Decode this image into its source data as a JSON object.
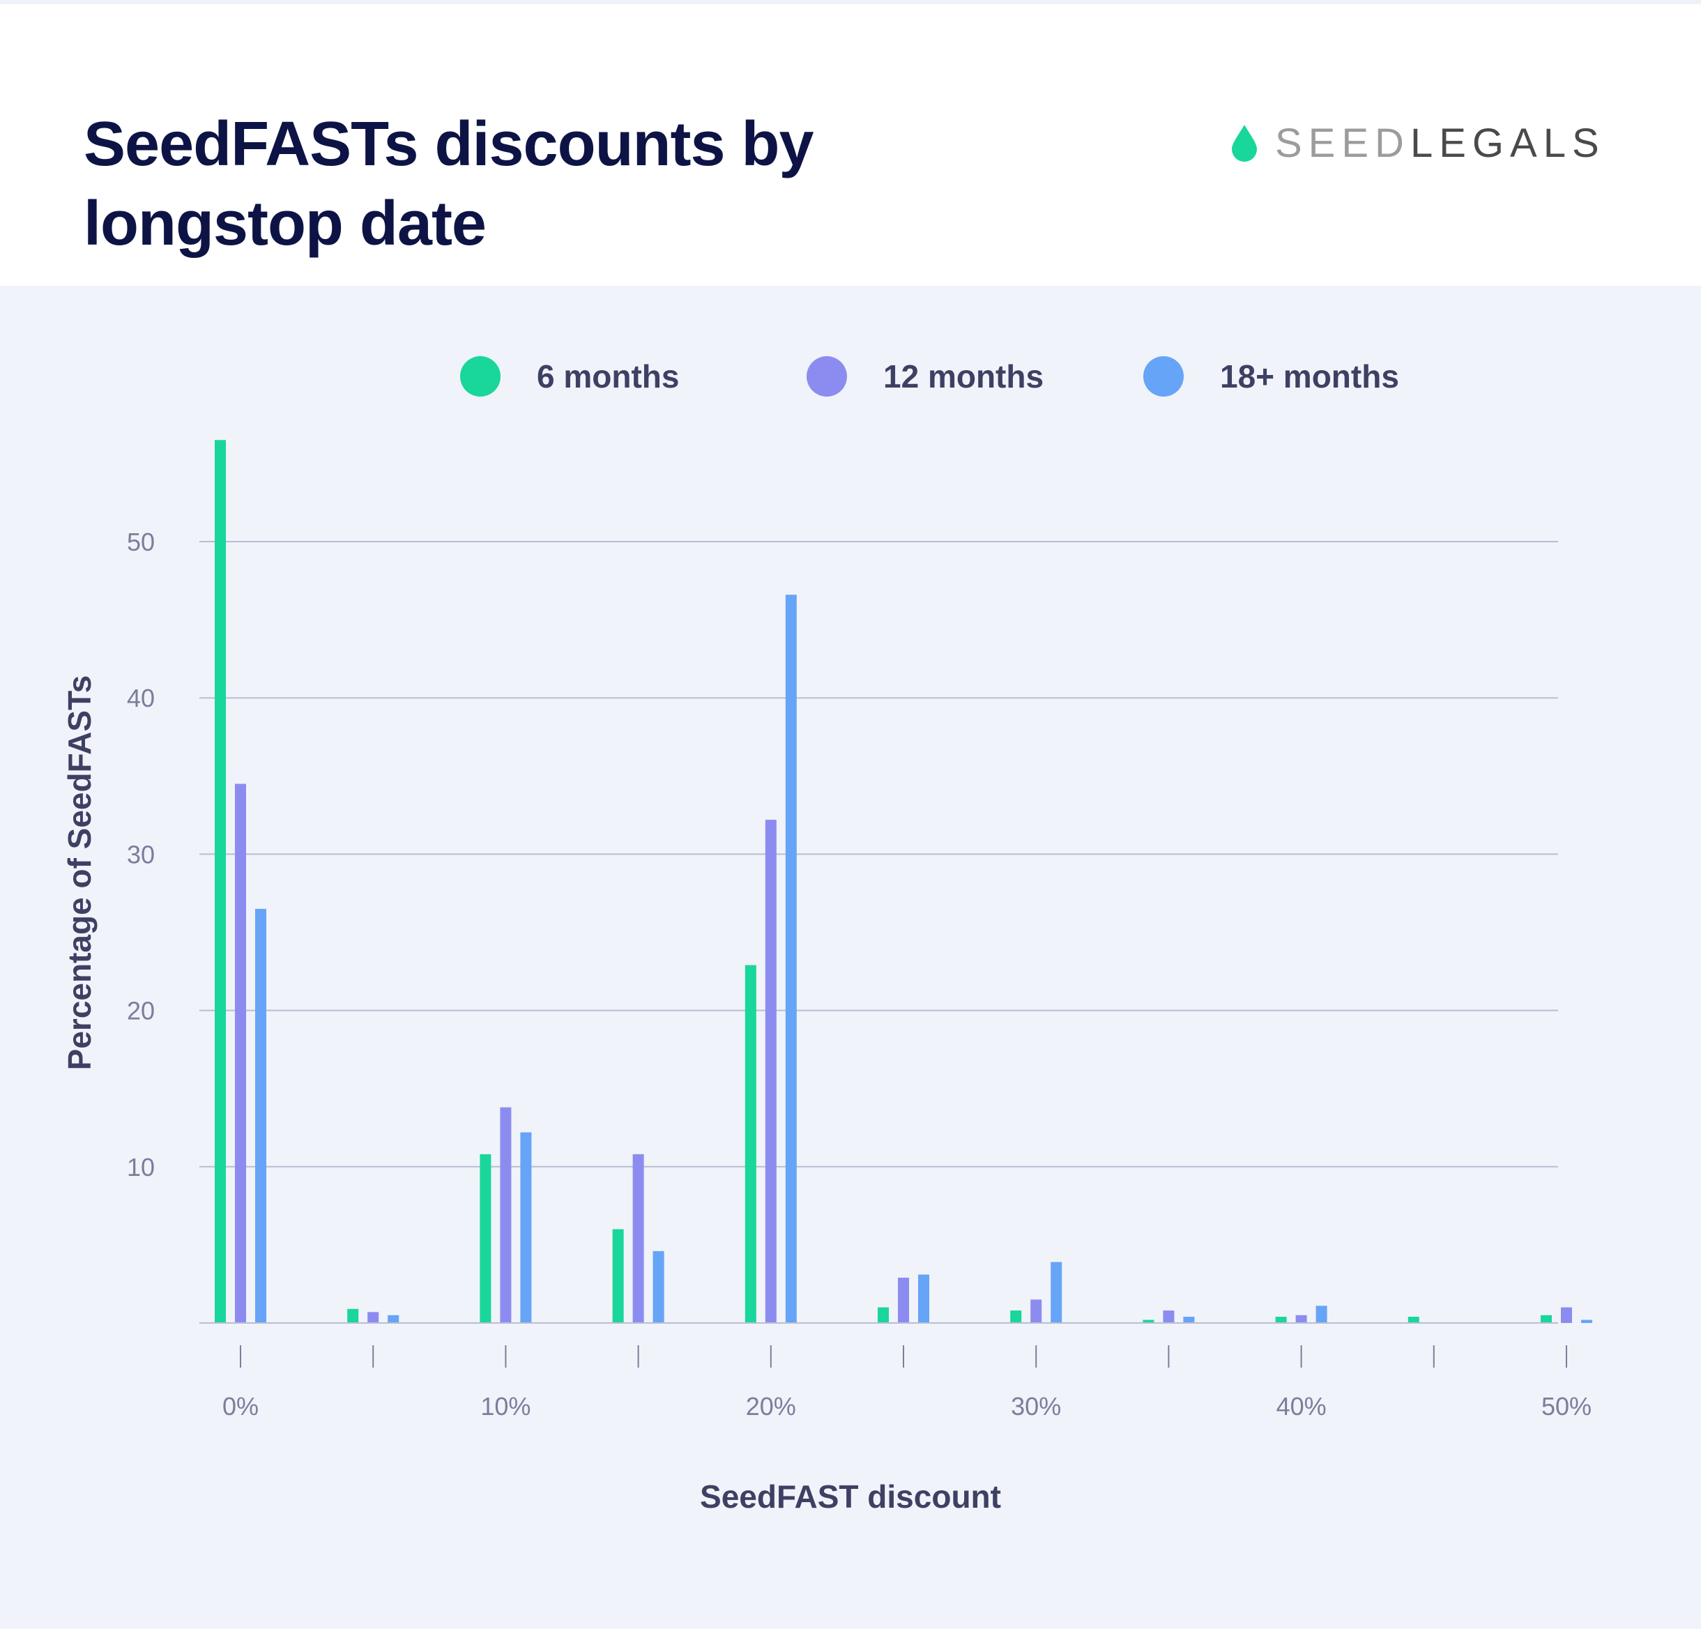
{
  "header": {
    "title": "SeedFASTs discounts by longstop date",
    "logo": {
      "part1": "SEED",
      "part2": "LEGALS",
      "icon": "drop-icon"
    }
  },
  "colors": {
    "title": "#0d1445",
    "panel": "#f0f3f9",
    "grid": "#b9bdd4",
    "tick_text": "#7a7e9c",
    "axis_title": "#3e4063",
    "brand_green": "#19d69b"
  },
  "chart_data": {
    "type": "bar",
    "title": "SeedFASTs discounts by longstop date",
    "xlabel": "SeedFAST discount",
    "ylabel": "Percentage of SeedFASTs",
    "categories": [
      "0%",
      "5%",
      "10%",
      "15%",
      "20%",
      "25%",
      "30%",
      "35%",
      "40%",
      "45%",
      "50%"
    ],
    "x_tick_labels": [
      "0%",
      "",
      "10%",
      "",
      "20%",
      "",
      "30%",
      "",
      "40%",
      "",
      "50%"
    ],
    "y_ticks": [
      10,
      20,
      30,
      40,
      50
    ],
    "ylim": [
      0,
      57
    ],
    "grid": true,
    "legend_position": "top-center",
    "series": [
      {
        "name": "6 months",
        "color": "#19d69b",
        "values": [
          56.5,
          0.9,
          10.8,
          6.0,
          22.9,
          1.0,
          0.8,
          0.2,
          0.4,
          0.4,
          0.5
        ]
      },
      {
        "name": "12 months",
        "color": "#8c8cf0",
        "values": [
          34.5,
          0.7,
          13.8,
          10.8,
          32.2,
          2.9,
          1.5,
          0.8,
          0.5,
          0,
          1.0
        ]
      },
      {
        "name": "18+ months",
        "color": "#66a4f7",
        "values": [
          26.5,
          0.5,
          12.2,
          4.6,
          46.6,
          3.1,
          3.9,
          0.4,
          1.1,
          0,
          0.2
        ]
      }
    ]
  }
}
